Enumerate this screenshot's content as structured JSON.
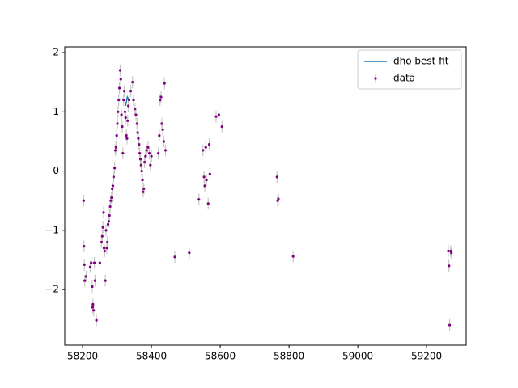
{
  "chart_data": {
    "type": "scatter",
    "xlim": [
      58148,
      59315
    ],
    "ylim": [
      -2.94,
      2.096
    ],
    "xticks": [
      58200,
      58400,
      58600,
      58800,
      59000,
      59200
    ],
    "yticks": [
      {
        "value": -2,
        "label": "−2"
      },
      {
        "value": -1,
        "label": "−1"
      },
      0,
      1,
      2
    ],
    "legend": "upper right",
    "series": [
      {
        "name": "dho best fit",
        "kind": "line",
        "color": "#1f77b4",
        "x": [
          58325,
          58330,
          58335
        ],
        "values": [
          1.1,
          1.25,
          1.2
        ]
      },
      {
        "name": "data",
        "kind": "errorbar",
        "color": "#800080",
        "error_color": "#c8c8c8",
        "yerr": 0.1,
        "x": [
          58203,
          58204,
          58205,
          58206,
          58210,
          58222,
          58225,
          58228,
          58229,
          58230,
          58232,
          58234,
          58236,
          58240,
          58250,
          58255,
          58257,
          58259,
          58261,
          58262,
          58264,
          58266,
          58268,
          58270,
          58272,
          58274,
          58276,
          58278,
          58280,
          58282,
          58284,
          58286,
          58288,
          58290,
          58293,
          58295,
          58297,
          58299,
          58301,
          58303,
          58305,
          58307,
          58309,
          58311,
          58313,
          58315,
          58317,
          58319,
          58321,
          58323,
          58325,
          58327,
          58329,
          58331,
          58333,
          58335,
          58340,
          58345,
          58348,
          58352,
          58355,
          58358,
          58360,
          58362,
          58364,
          58366,
          58368,
          58370,
          58372,
          58374,
          58376,
          58378,
          58380,
          58383,
          58386,
          58390,
          58394,
          58397,
          58400,
          58420,
          58423,
          58425,
          58428,
          58430,
          58433,
          58436,
          58438,
          58441,
          58468,
          58510,
          58538,
          58550,
          58553,
          58555,
          58558,
          58560,
          58565,
          58568,
          58570,
          58588,
          58596,
          58605,
          58765,
          58767,
          58769,
          58812,
          59263,
          59265,
          59267,
          59270,
          59272
        ],
        "values": [
          -0.5,
          -1.27,
          -1.58,
          -1.85,
          -1.78,
          -1.62,
          -1.55,
          -1.95,
          -2.3,
          -2.25,
          -2.35,
          -1.55,
          -1.85,
          -2.52,
          -1.55,
          -1.2,
          -1.1,
          -0.95,
          -0.7,
          -1.3,
          -1.35,
          -1.85,
          -1.0,
          -1.3,
          -1.2,
          -0.9,
          -0.85,
          -0.75,
          -0.6,
          -0.5,
          -0.45,
          -0.3,
          -0.25,
          -0.1,
          0.05,
          0.35,
          0.4,
          0.6,
          0.8,
          1.0,
          1.2,
          1.4,
          1.7,
          1.55,
          0.95,
          0.75,
          0.3,
          1.2,
          1.35,
          1.0,
          0.9,
          0.6,
          0.55,
          0.85,
          1.1,
          1.2,
          1.35,
          1.5,
          1.2,
          1.05,
          0.95,
          0.8,
          0.65,
          0.55,
          0.45,
          0.3,
          0.2,
          0.1,
          0.0,
          -0.15,
          -0.35,
          -0.3,
          0.15,
          0.25,
          0.35,
          0.4,
          0.3,
          0.1,
          0.25,
          0.3,
          0.6,
          1.2,
          1.25,
          0.8,
          0.7,
          0.5,
          1.48,
          0.35,
          -1.45,
          -1.38,
          -0.48,
          0.35,
          -0.1,
          -0.25,
          0.4,
          -0.15,
          -0.55,
          0.45,
          -0.05,
          0.92,
          0.95,
          0.75,
          -0.1,
          -0.5,
          -0.47,
          -1.44,
          -1.35,
          -1.6,
          -2.6,
          -1.35,
          -1.38
        ]
      }
    ]
  }
}
